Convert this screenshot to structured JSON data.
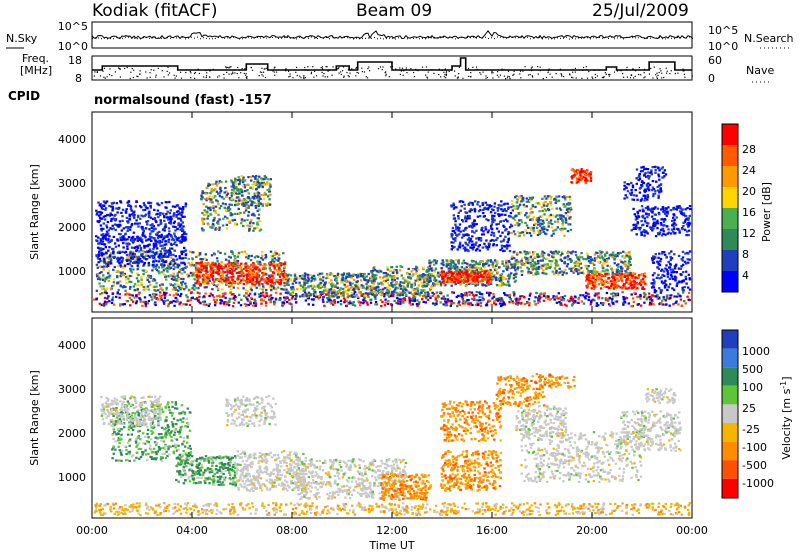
{
  "header": {
    "station": "Kodiak (fitACF)",
    "beam": "Beam 09",
    "date": "25/Jul/2009"
  },
  "left_labels": {
    "nsky": "N.Sky",
    "freq_line1": "Freq.",
    "freq_line2": "[MHz]",
    "cpid": "CPID"
  },
  "right_labels": {
    "nsearch": "N.Search",
    "nave": "Nave"
  },
  "cpid_text": "normalsound (fast) -157",
  "colors": {
    "power_scale": [
      "#0000ff",
      "#1f3fbf",
      "#2e8b57",
      "#4caf50",
      "#ffd400",
      "#ff9900",
      "#ff5a00",
      "#ff0000"
    ],
    "velocity_scale": [
      "#1f3fbf",
      "#3b7bdc",
      "#2e8b57",
      "#5fc43a",
      "#c8c8c8",
      "#f5b400",
      "#ff8c00",
      "#ff5000",
      "#ff0000"
    ]
  },
  "chart_data": [
    {
      "type": "line",
      "name": "noise-panel",
      "ylabel_left": "N.Sky",
      "ylabel_right": "N.Search",
      "yticks_left": [
        "10^5",
        "10^0"
      ],
      "yticks_right": [
        "10^5",
        "10^0"
      ]
    },
    {
      "type": "line",
      "name": "frequency-nave-panel",
      "ylabel_left": "Freq. [MHz]",
      "ylabel_right": "Nave",
      "yticks_left": [
        "18",
        "8"
      ],
      "yticks_right": [
        "60",
        "0"
      ],
      "ylim_left": [
        8,
        18
      ],
      "ylim_right": [
        0,
        60
      ]
    },
    {
      "type": "heatmap",
      "name": "power-panel",
      "ylabel": "Slant Range [km]",
      "yticks": [
        "1000",
        "2000",
        "3000",
        "4000"
      ],
      "ylim": [
        180,
        4700
      ],
      "colorbar": {
        "label": "Power [dB]",
        "ticks": [
          "4",
          "8",
          "12",
          "16",
          "20",
          "24",
          "28"
        ],
        "range": [
          0,
          32
        ]
      }
    },
    {
      "type": "heatmap",
      "name": "velocity-panel",
      "ylabel": "Slant Range [km]",
      "yticks": [
        "1000",
        "2000",
        "3000",
        "4000"
      ],
      "ylim": [
        180,
        4700
      ],
      "colorbar": {
        "label": "Velocity [m s^-1]",
        "ticks": [
          "1000",
          "500",
          "100",
          "25",
          "-25",
          "-100",
          "-500",
          "-1000"
        ]
      }
    }
  ],
  "xaxis": {
    "label": "Time UT",
    "ticks": [
      "00:00",
      "04:00",
      "08:00",
      "12:00",
      "16:00",
      "20:00",
      "00:00"
    ],
    "range_hours": [
      0,
      24
    ]
  }
}
